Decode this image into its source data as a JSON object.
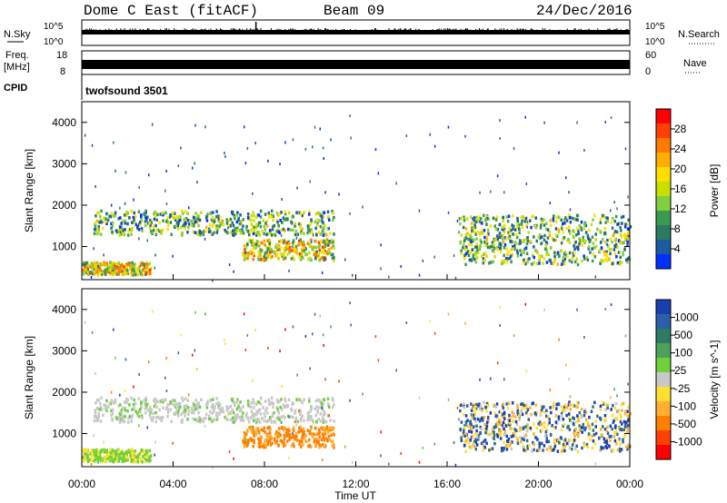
{
  "header": {
    "station": "Dome C East (fitACF)",
    "beam": "Beam 09",
    "date": "24/Dec/2016"
  },
  "strips": {
    "nsky_label": "N.Sky",
    "nsky_ticks": [
      "10^5",
      "10^0"
    ],
    "nsearch_label": "N.Search",
    "nsearch_ticks": [
      "10^5",
      "10^0"
    ],
    "freq_label": "Freq.",
    "freq_unit": "[MHz]",
    "freq_ticks": [
      "18",
      "8"
    ],
    "nave_label": "Nave",
    "nave_ticks": [
      "60",
      "0"
    ],
    "cpid_label": "CPID",
    "cpid_value": "twofsound 3501"
  },
  "chart_data": [
    {
      "type": "heatmap",
      "name": "Power",
      "ylabel": "Slant Range [km]",
      "xlabel": "",
      "ylim": [
        200,
        4500
      ],
      "yticks": [
        "1000",
        "2000",
        "3000",
        "4000"
      ],
      "colorbar": {
        "label": "Power [dB]",
        "ticks": [
          "28",
          "24",
          "20",
          "16",
          "12",
          "8",
          "4"
        ],
        "colors": [
          "#ff0000",
          "#ff4000",
          "#ff7a00",
          "#ffae00",
          "#ffdf00",
          "#c8e000",
          "#7fd040",
          "#3a9a50",
          "#2e7a60",
          "#1e5aa0",
          "#0030ff"
        ]
      },
      "features": [
        {
          "t": [
            0.0,
            3.0
          ],
          "range": [
            350,
            650
          ],
          "level": "high"
        },
        {
          "t": [
            0.5,
            11.0
          ],
          "range": [
            1300,
            1900
          ],
          "level": "medium"
        },
        {
          "t": [
            7.0,
            11.0
          ],
          "range": [
            700,
            1200
          ],
          "level": "high"
        },
        {
          "t": [
            16.5,
            24.0
          ],
          "range": [
            600,
            1800
          ],
          "level": "medium"
        }
      ]
    },
    {
      "type": "heatmap",
      "name": "Velocity",
      "ylabel": "Slant Range [km]",
      "xlabel": "Time UT",
      "ylim": [
        200,
        4500
      ],
      "yticks": [
        "1000",
        "2000",
        "3000",
        "4000"
      ],
      "xticks": [
        "00:00",
        "04:00",
        "08:00",
        "12:00",
        "16:00",
        "20:00",
        "00:00"
      ],
      "xrange_hours": [
        0,
        24
      ],
      "colorbar": {
        "label": "Velocity [m s^-1]",
        "ticks": [
          "1000",
          "500",
          "100",
          "25",
          "-25",
          "-100",
          "-500",
          "-1000"
        ],
        "colors": [
          "#1a3fb0",
          "#2a60a8",
          "#2f7a65",
          "#4ea05a",
          "#6fd03a",
          "#c8c8c8",
          "#ffe030",
          "#ffb030",
          "#ff8000",
          "#ff4000",
          "#ff0000"
        ]
      },
      "features": [
        {
          "t": [
            0.0,
            3.0
          ],
          "range": [
            350,
            650
          ],
          "velocity": "low-positive"
        },
        {
          "t": [
            0.5,
            11.0
          ],
          "range": [
            1300,
            1900
          ],
          "velocity": "near-zero"
        },
        {
          "t": [
            7.0,
            11.0
          ],
          "range": [
            700,
            1200
          ],
          "velocity": "negative"
        },
        {
          "t": [
            16.5,
            24.0
          ],
          "range": [
            600,
            1800
          ],
          "velocity": "mixed"
        }
      ]
    }
  ]
}
